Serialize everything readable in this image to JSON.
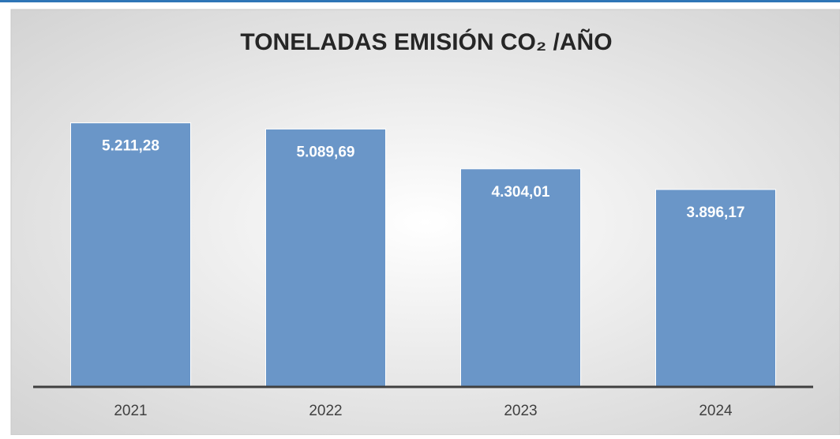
{
  "chart_data": {
    "type": "bar",
    "title": "TONELADAS EMISIÓN CO₂ /AÑO",
    "categories": [
      "2021",
      "2022",
      "2023",
      "2024"
    ],
    "values": [
      5211.28,
      5089.69,
      4304.01,
      3896.17
    ],
    "value_labels": [
      "5.211,28",
      "5.089,69",
      "4.304,01",
      "3.896,17"
    ],
    "color": "#6a96c8",
    "ylim": [
      0,
      6000
    ]
  }
}
